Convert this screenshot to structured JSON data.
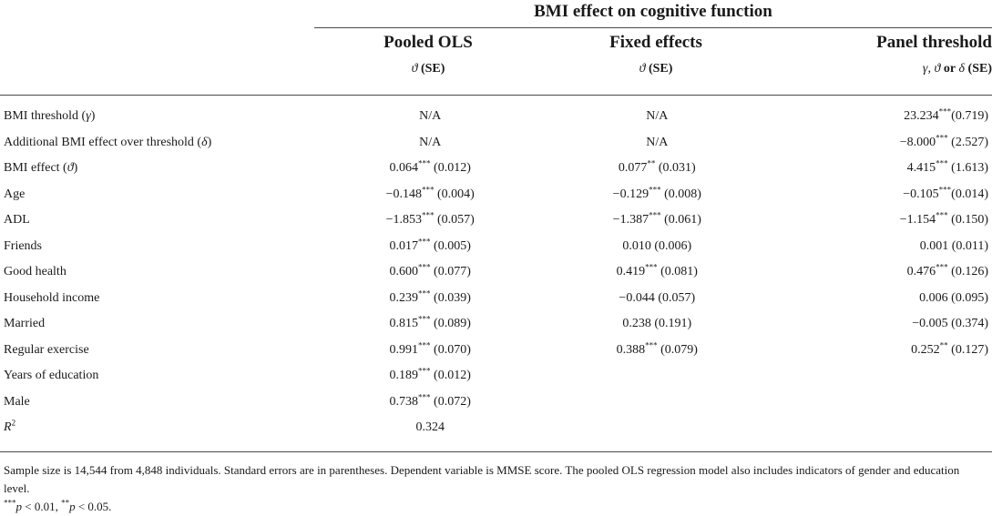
{
  "header": {
    "group_title": "BMI effect on cognitive function",
    "columns": [
      {
        "title": "Pooled OLS",
        "sub_symbols": "ϑ",
        "sub_se": "(SE)"
      },
      {
        "title": "Fixed effects",
        "sub_symbols": "ϑ",
        "sub_se": "(SE)"
      },
      {
        "title": "Panel threshold",
        "sub_symbols": "γ, ϑ",
        "sub_or": "or",
        "sub_delta": "δ",
        "sub_se": "(SE)"
      }
    ]
  },
  "rows": [
    {
      "label": "BMI threshold (",
      "sym": "γ",
      "label_end": ")",
      "v1": "N/A",
      "v2": "N/A",
      "v3_num": "23.234",
      "v3_star": "***",
      "v3_se": "(0.719)"
    },
    {
      "label": "Additional BMI effect over threshold (",
      "sym": "δ",
      "label_end": ")",
      "v1": "N/A",
      "v2": "N/A",
      "v3_num": "−8.000",
      "v3_star": "***",
      "v3_se": " (2.527)"
    },
    {
      "label": "BMI effect (",
      "sym": "ϑ",
      "label_end": ")",
      "v1_num": "0.064",
      "v1_star": "***",
      "v1_se": " (0.012)",
      "v2_num": "0.077",
      "v2_star": "**",
      "v2_se": " (0.031)",
      "v3_num": "4.415",
      "v3_star": "***",
      "v3_se": " (1.613)"
    },
    {
      "label": "Age",
      "v1_num": "−0.148",
      "v1_star": "***",
      "v1_se": " (0.004)",
      "v2_num": "−0.129",
      "v2_star": "***",
      "v2_se": " (0.008)",
      "v3_num": "−0.105",
      "v3_star": "***",
      "v3_se": "(0.014)"
    },
    {
      "label": "ADL",
      "v1_num": "−1.853",
      "v1_star": "***",
      "v1_se": " (0.057)",
      "v2_num": "−1.387",
      "v2_star": "***",
      "v2_se": " (0.061)",
      "v3_num": "−1.154",
      "v3_star": "***",
      "v3_se": " (0.150)"
    },
    {
      "label": "Friends",
      "v1_num": "0.017",
      "v1_star": "***",
      "v1_se": " (0.005)",
      "v2": "0.010 (0.006)",
      "v3": "0.001 (0.011)"
    },
    {
      "label": "Good health",
      "v1_num": "0.600",
      "v1_star": "***",
      "v1_se": " (0.077)",
      "v2_num": "0.419",
      "v2_star": "***",
      "v2_se": " (0.081)",
      "v3_num": "0.476",
      "v3_star": "***",
      "v3_se": " (0.126)"
    },
    {
      "label": "Household income",
      "v1_num": "0.239",
      "v1_star": "***",
      "v1_se": " (0.039)",
      "v2": "−0.044 (0.057)",
      "v3": "0.006 (0.095)"
    },
    {
      "label": "Married",
      "v1_num": "0.815",
      "v1_star": "***",
      "v1_se": " (0.089)",
      "v2": "0.238 (0.191)",
      "v3": "−0.005 (0.374)"
    },
    {
      "label": "Regular exercise",
      "v1_num": "0.991",
      "v1_star": "***",
      "v1_se": " (0.070)",
      "v2_num": "0.388",
      "v2_star": "***",
      "v2_se": " (0.079)",
      "v3_num": "0.252",
      "v3_star": "**",
      "v3_se": " (0.127)"
    },
    {
      "label": "Years of education",
      "v1_num": "0.189",
      "v1_star": "***",
      "v1_se": " (0.012)",
      "v2": "",
      "v3": ""
    },
    {
      "label": "Male",
      "v1_num": "0.738",
      "v1_star": "***",
      "v1_se": " (0.072)",
      "v2": "",
      "v3": ""
    },
    {
      "label": "R",
      "label_sup": "2",
      "v1": "0.324",
      "v2": "",
      "v3": ""
    }
  ],
  "footnote": {
    "text": "Sample size is 14,544 from 4,848 individuals. Standard errors are in parentheses. Dependent variable is MMSE score. The pooled OLS regression model also includes indicators of gender and education level.",
    "sig_star1": "***",
    "sig_p1": "p",
    "sig_val1": " < 0.01, ",
    "sig_star2": "**",
    "sig_p2": "p",
    "sig_val2": " < 0.05."
  }
}
